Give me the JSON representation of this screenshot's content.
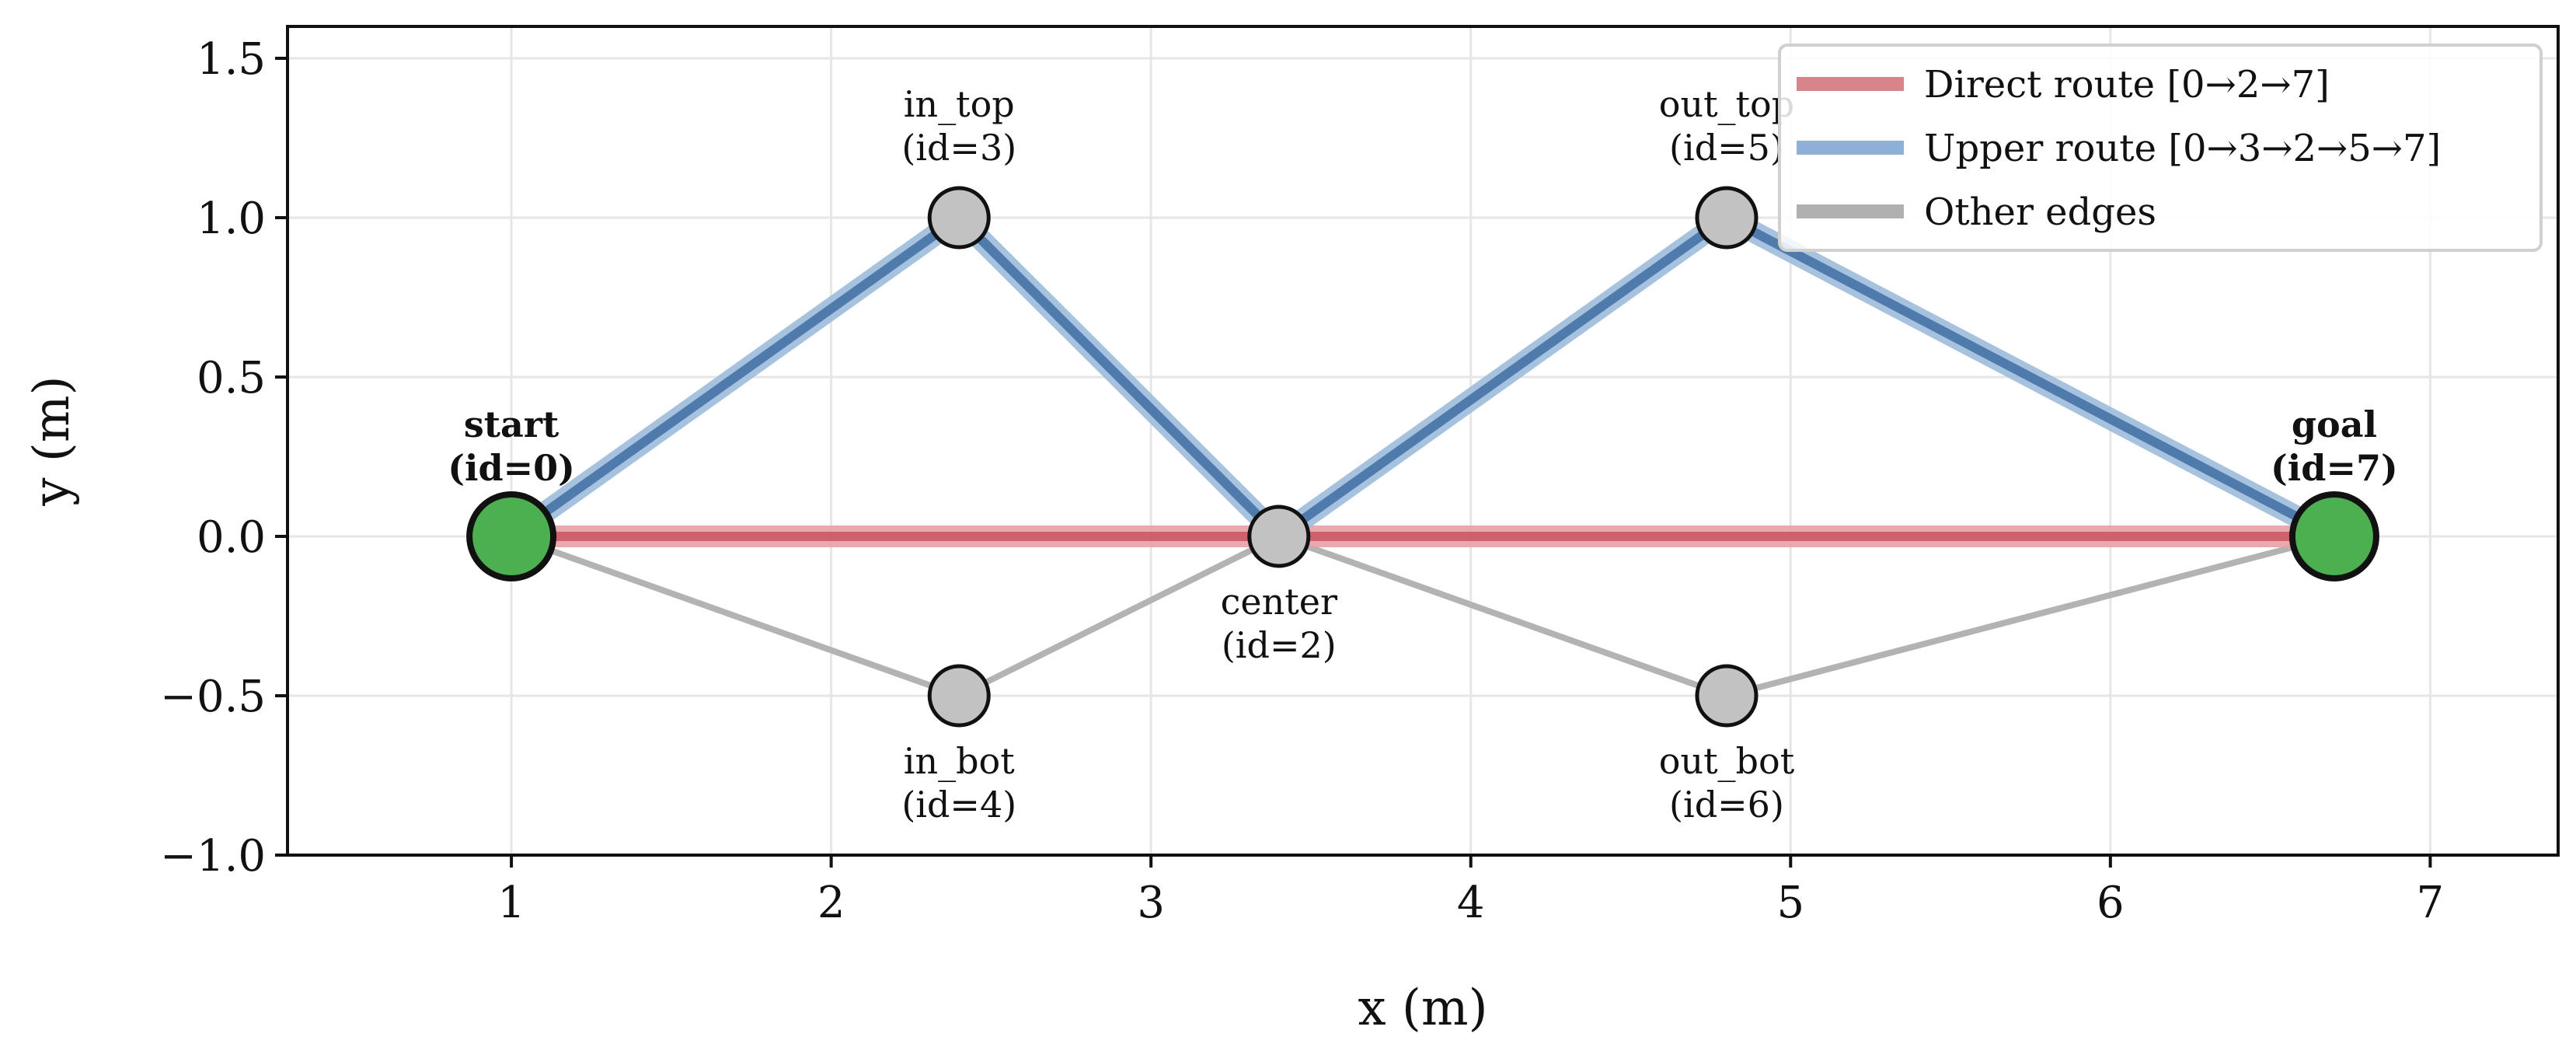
{
  "chart_data": {
    "type": "graph",
    "xlabel": "x (m)",
    "ylabel": "y (m)",
    "xlim": [
      0.3,
      7.4
    ],
    "ylim": [
      -1.0,
      1.6
    ],
    "xticks": [
      1,
      2,
      3,
      4,
      5,
      6,
      7
    ],
    "yticks": [
      -1.0,
      -0.5,
      0.0,
      0.5,
      1.0,
      1.5
    ],
    "ytick_labels": [
      "−1.0",
      "−0.5",
      "0.0",
      "0.5",
      "1.0",
      "1.5"
    ],
    "grid": true,
    "legend_position": "top-right",
    "nodes": [
      {
        "id": 0,
        "name": "start",
        "label": [
          "start",
          "(id=0)"
        ],
        "x": 1.0,
        "y": 0.0,
        "role": "endpoint",
        "label_pos": "above",
        "bold": true
      },
      {
        "id": 2,
        "name": "center",
        "label": [
          "center",
          "(id=2)"
        ],
        "x": 3.4,
        "y": 0.0,
        "role": "waypoint",
        "label_pos": "below",
        "bold": false
      },
      {
        "id": 3,
        "name": "in_top",
        "label": [
          "in_top",
          "(id=3)"
        ],
        "x": 2.4,
        "y": 1.0,
        "role": "waypoint",
        "label_pos": "above",
        "bold": false
      },
      {
        "id": 4,
        "name": "in_bot",
        "label": [
          "in_bot",
          "(id=4)"
        ],
        "x": 2.4,
        "y": -0.5,
        "role": "waypoint",
        "label_pos": "below",
        "bold": false
      },
      {
        "id": 5,
        "name": "out_top",
        "label": [
          "out_top",
          "(id=5)"
        ],
        "x": 4.8,
        "y": 1.0,
        "role": "waypoint",
        "label_pos": "above",
        "bold": false
      },
      {
        "id": 6,
        "name": "out_bot",
        "label": [
          "out_bot",
          "(id=6)"
        ],
        "x": 4.8,
        "y": -0.5,
        "role": "waypoint",
        "label_pos": "below",
        "bold": false
      },
      {
        "id": 7,
        "name": "goal",
        "label": [
          "goal",
          "(id=7)"
        ],
        "x": 6.7,
        "y": 0.0,
        "role": "endpoint",
        "label_pos": "above",
        "bold": true
      }
    ],
    "other_edges": [
      [
        0,
        4
      ],
      [
        4,
        2
      ],
      [
        2,
        6
      ],
      [
        6,
        7
      ]
    ],
    "routes": [
      {
        "name": "Direct route [0→2→7]",
        "path": [
          0,
          2,
          7
        ],
        "color": "#c44e52"
      },
      {
        "name": "Upper route [0→3→2→5→7]",
        "path": [
          0,
          3,
          2,
          5,
          7
        ],
        "color": "#4c72b0"
      }
    ],
    "legend": [
      {
        "label": "Direct route [0→2→7]",
        "color": "#d9848a"
      },
      {
        "label": "Upper route [0→3→2→5→7]",
        "color": "#8fb0d6"
      },
      {
        "label": "Other edges",
        "color": "#b0b0b0"
      }
    ],
    "colors": {
      "other_edge": "#b3b3b3",
      "direct_route": "#c9555d",
      "direct_route_halo": "#e3a1a6",
      "upper_route": "#3f6fa3",
      "upper_route_halo": "#9dbbdc",
      "endpoint_fill": "#4caf50",
      "waypoint_fill": "#c2c2c2",
      "node_edge": "#111111",
      "grid": "#e6e6e6"
    }
  }
}
